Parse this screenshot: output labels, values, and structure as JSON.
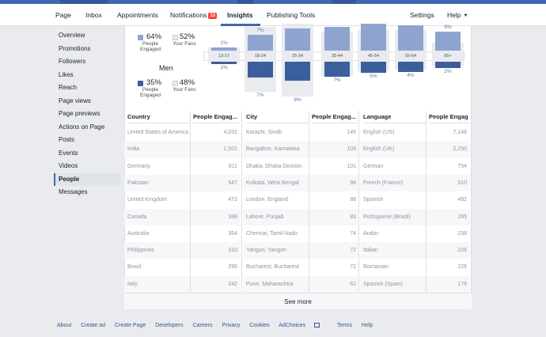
{
  "topnav": {
    "tabs": [
      {
        "label": "Page"
      },
      {
        "label": "Inbox"
      },
      {
        "label": "Appointments"
      },
      {
        "label": "Notifications",
        "badge": "13"
      },
      {
        "label": "Insights"
      },
      {
        "label": "Publishing Tools"
      }
    ],
    "active_tab": "Insights",
    "settings": "Settings",
    "help": "Help"
  },
  "sidebar": {
    "items": [
      "Overview",
      "Promotions",
      "Followers",
      "Likes",
      "Reach",
      "Page views",
      "Page previews",
      "Actions on Page",
      "Posts",
      "Events",
      "Videos",
      "People",
      "Messages"
    ],
    "active": "People"
  },
  "demographics": {
    "women": {
      "engaged_pct": "64%",
      "engaged_label": "People Engaged",
      "fans_pct": "52%",
      "fans_label": "Your Fans"
    },
    "men_label": "Men",
    "men": {
      "engaged_pct": "35%",
      "engaged_label": "People Engaged",
      "fans_pct": "48%",
      "fans_label": "Your Fans"
    },
    "age_groups": [
      {
        "label": "13-17",
        "women_pct": "1%",
        "men_pct": "1%"
      },
      {
        "label": "18-24",
        "women_pct": "7%",
        "men_pct": "7%"
      },
      {
        "label": "25-34",
        "women_pct": "",
        "men_pct": "9%"
      },
      {
        "label": "35-44",
        "women_pct": "",
        "men_pct": "7%"
      },
      {
        "label": "45-54",
        "women_pct": "",
        "men_pct": "5%"
      },
      {
        "label": "55-64",
        "women_pct": "",
        "men_pct": "4%"
      },
      {
        "label": "65+",
        "women_pct": "9%",
        "men_pct": "2%"
      }
    ],
    "colors": {
      "women_bar": "#8fa3cf",
      "men_bar": "#3b5f9c",
      "fans_bar": "#e9ebee"
    }
  },
  "tables": {
    "country": {
      "headers": [
        "Country",
        "People Engag..."
      ],
      "rows": [
        [
          "United States of America",
          "4,031"
        ],
        [
          "India",
          "1,501"
        ],
        [
          "Germany",
          "611"
        ],
        [
          "Pakistan",
          "547"
        ],
        [
          "United Kingdom",
          "472"
        ],
        [
          "Canada",
          "388"
        ],
        [
          "Australia",
          "354"
        ],
        [
          "Philippines",
          "310"
        ],
        [
          "Brazil",
          "295"
        ],
        [
          "Italy",
          "242"
        ]
      ]
    },
    "city": {
      "headers": [
        "City",
        "People Engag..."
      ],
      "rows": [
        [
          "Karachi, Sindh",
          "145"
        ],
        [
          "Bangalore, Karnataka",
          "109"
        ],
        [
          "Dhaka, Dhaka Division",
          "101"
        ],
        [
          "Kolkata, West Bengal",
          "98"
        ],
        [
          "London, England",
          "88"
        ],
        [
          "Lahore, Punjab",
          "83"
        ],
        [
          "Chennai, Tamil Nadu",
          "74"
        ],
        [
          "Yangon, Yangon",
          "72"
        ],
        [
          "Bucharest, Bucharest",
          "72"
        ],
        [
          "Pune, Maharashtra",
          "62"
        ]
      ]
    },
    "language": {
      "headers": [
        "Language",
        "People Engag..."
      ],
      "rows": [
        [
          "English (US)",
          "7,146"
        ],
        [
          "English (UK)",
          "2,250"
        ],
        [
          "German",
          "754"
        ],
        [
          "French (France)",
          "510"
        ],
        [
          "Spanish",
          "492"
        ],
        [
          "Portuguese (Brazil)",
          "295"
        ],
        [
          "Arabic",
          "238"
        ],
        [
          "Italian",
          "226"
        ],
        [
          "Romanian",
          "226"
        ],
        [
          "Spanish (Spain)",
          "175"
        ]
      ]
    }
  },
  "see_more": "See more",
  "footer": [
    "About",
    "Create ad",
    "Create Page",
    "Developers",
    "Careers",
    "Privacy",
    "Cookies",
    "AdChoices",
    "Terms",
    "Help"
  ]
}
